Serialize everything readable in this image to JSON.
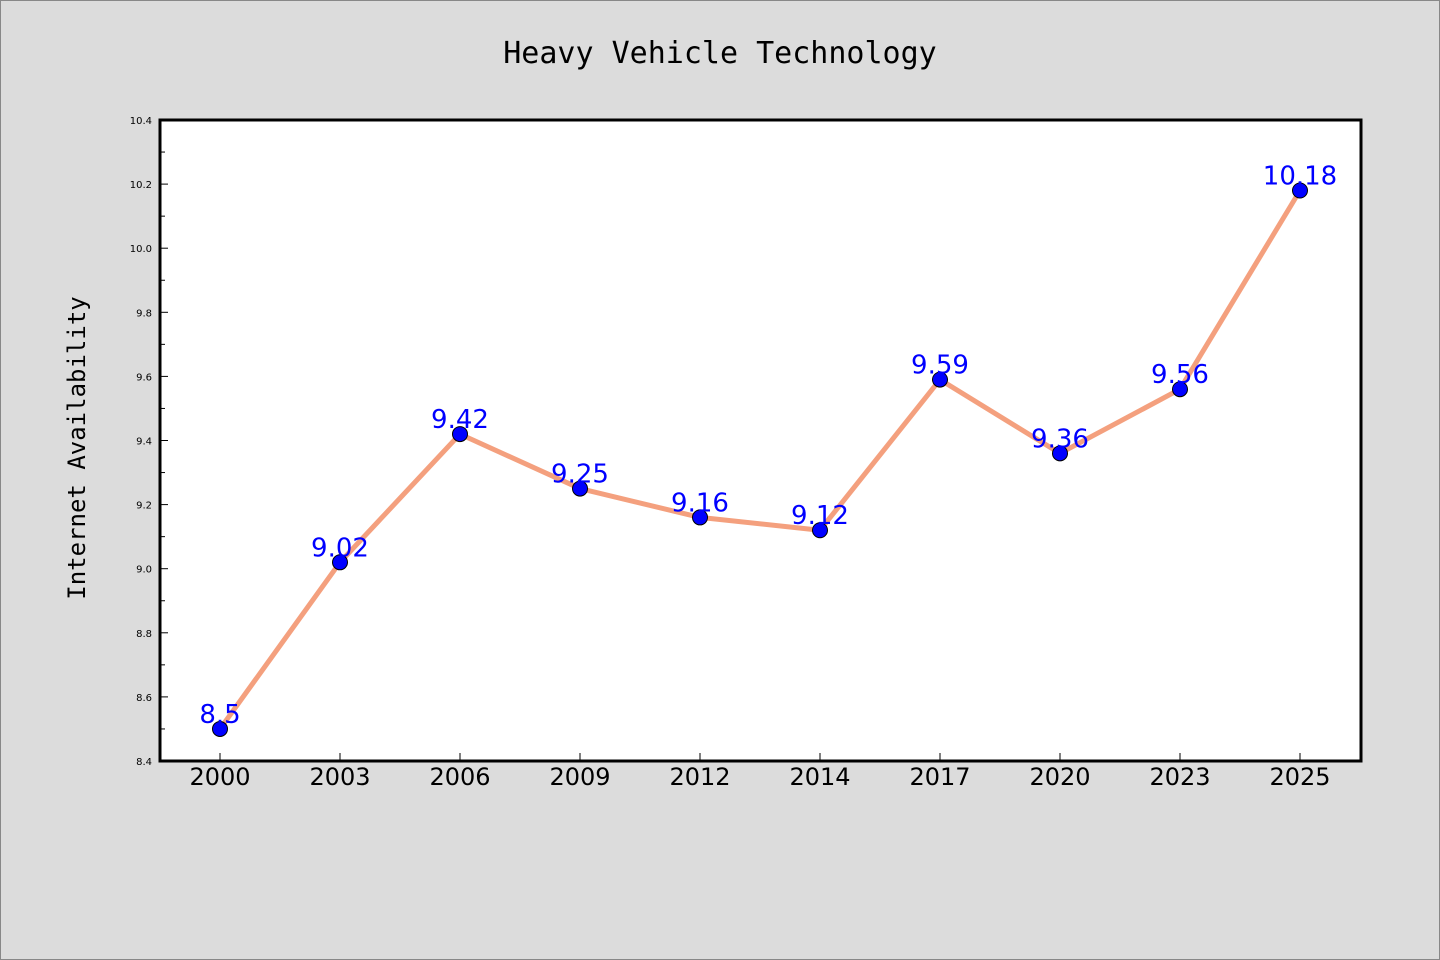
{
  "chart_data": {
    "type": "line",
    "title": "Heavy Vehicle Technology",
    "xlabel": "",
    "ylabel": "Internet Availability",
    "categories": [
      "2000",
      "2003",
      "2006",
      "2009",
      "2012",
      "2014",
      "2017",
      "2020",
      "2023",
      "2025"
    ],
    "values": [
      8.5,
      9.02,
      9.42,
      9.25,
      9.16,
      9.12,
      9.59,
      9.36,
      9.56,
      10.18
    ],
    "data_labels": [
      "8.5",
      "9.02",
      "9.42",
      "9.25",
      "9.16",
      "9.12",
      "9.59",
      "9.36",
      "9.56",
      "10.18"
    ],
    "ylim": [
      8.4,
      10.4
    ],
    "yticks": [
      "8.4",
      "8.6",
      "8.8",
      "9.0",
      "9.2",
      "9.4",
      "9.6",
      "9.8",
      "10.0",
      "10.2",
      "10.4"
    ],
    "grid": false,
    "colors": {
      "line": "#f4a07e",
      "marker": "#0000ff",
      "label": "#0000ff",
      "background": "#dcdcdc",
      "plot_background": "#ffffff"
    }
  }
}
